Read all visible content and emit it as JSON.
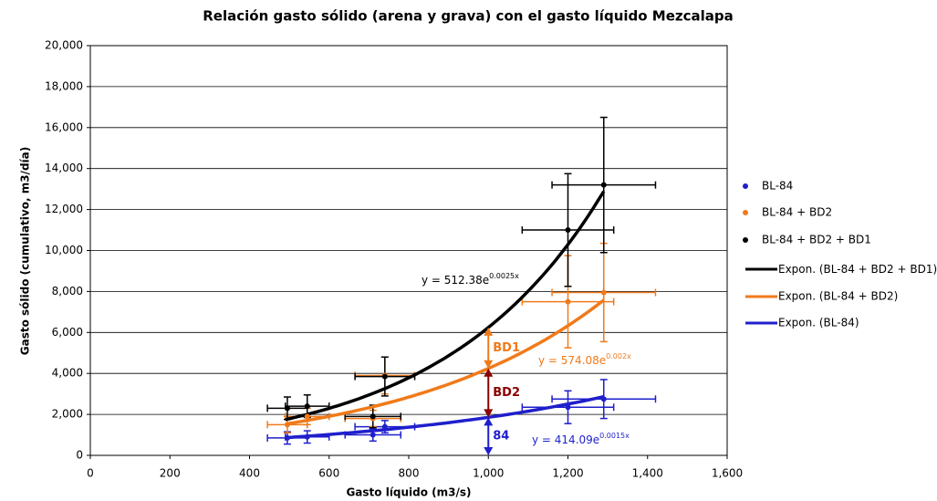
{
  "chart_data": {
    "type": "scatter",
    "title": "Relación gasto sólido (arena y grava) con el gasto líquido Mezcalapa",
    "x_label": "Gasto líquido (m3/s)",
    "y_label": "Gasto sólido (cumulativo, m3/día)",
    "xlim": [
      0,
      1600
    ],
    "xticks": [
      0,
      200,
      400,
      600,
      800,
      {
        "value": 1000,
        "label": "1,000"
      },
      {
        "value": 1200,
        "label": "1,200"
      },
      {
        "value": 1400,
        "label": "1,400"
      },
      {
        "value": 1600,
        "label": "1,600"
      }
    ],
    "ylim": [
      0,
      20000
    ],
    "yticks": [
      0,
      {
        "value": 2000,
        "label": "2,000"
      },
      {
        "value": 4000,
        "label": "4,000"
      },
      {
        "value": 6000,
        "label": "6,000"
      },
      {
        "value": 8000,
        "label": "8,000"
      },
      {
        "value": 10000,
        "label": "10,000"
      },
      {
        "value": 12000,
        "label": "12,000"
      },
      {
        "value": 14000,
        "label": "14,000"
      },
      {
        "value": 16000,
        "label": "16,000"
      },
      {
        "value": 18000,
        "label": "18,000"
      },
      {
        "value": 20000,
        "label": "20,000"
      }
    ],
    "grid": true,
    "legend": "right",
    "series": [
      {
        "name": "BL-84",
        "color": "#1f1fcc",
        "x": [
          495,
          545,
          710,
          740,
          1200,
          1290
        ],
        "values": [
          850,
          900,
          1000,
          1400,
          2350,
          2750
        ],
        "xerr": [
          50,
          55,
          70,
          75,
          115,
          130
        ],
        "yerr": [
          300,
          300,
          300,
          300,
          800,
          950
        ]
      },
      {
        "name": "BL-84 + BD2",
        "color": "#f07a1a",
        "x": [
          495,
          545,
          710,
          740,
          1200,
          1290
        ],
        "values": [
          1500,
          1900,
          1800,
          3900,
          7500,
          7950
        ],
        "xerr": [
          50,
          55,
          70,
          75,
          115,
          130
        ],
        "yerr": [
          400,
          400,
          400,
          900,
          2250,
          2400
        ]
      },
      {
        "name": "BL-84 + BD2 + BD1",
        "color": "#000000",
        "x": [
          495,
          545,
          710,
          740,
          1200,
          1290
        ],
        "values": [
          2300,
          2400,
          1900,
          3850,
          11000,
          13200
        ],
        "xerr": [
          50,
          55,
          70,
          75,
          115,
          130
        ],
        "yerr": [
          550,
          550,
          550,
          950,
          2750,
          3300
        ]
      }
    ],
    "trendlines": [
      {
        "name": "Expon. (BL-84 + BD2 + BD1)",
        "color": "#000000",
        "a": 512.38,
        "b": 0.0025,
        "xrange": [
          490,
          1290
        ],
        "label": "y = 512.38e",
        "label_exp": "0.0025x"
      },
      {
        "name": "Expon. (BL-84 + BD2)",
        "color": "#f07a1a",
        "a": 574.08,
        "b": 0.002,
        "xrange": [
          490,
          1290
        ],
        "label": "y = 574.08e",
        "label_exp": "0.002x"
      },
      {
        "name": "Expon. (BL-84)",
        "color": "#1f1fcc",
        "a": 414.09,
        "b": 0.0015,
        "xrange": [
          490,
          1290
        ],
        "label": "y = 414.09e",
        "label_exp": "0.0015x"
      }
    ],
    "annotations": [
      {
        "text": "BD1",
        "color": "#f07a1a"
      },
      {
        "text": "BD2",
        "color": "#8b0000"
      },
      {
        "text": "84",
        "color": "#1f1fcc"
      }
    ],
    "annotation_x": 1000
  }
}
